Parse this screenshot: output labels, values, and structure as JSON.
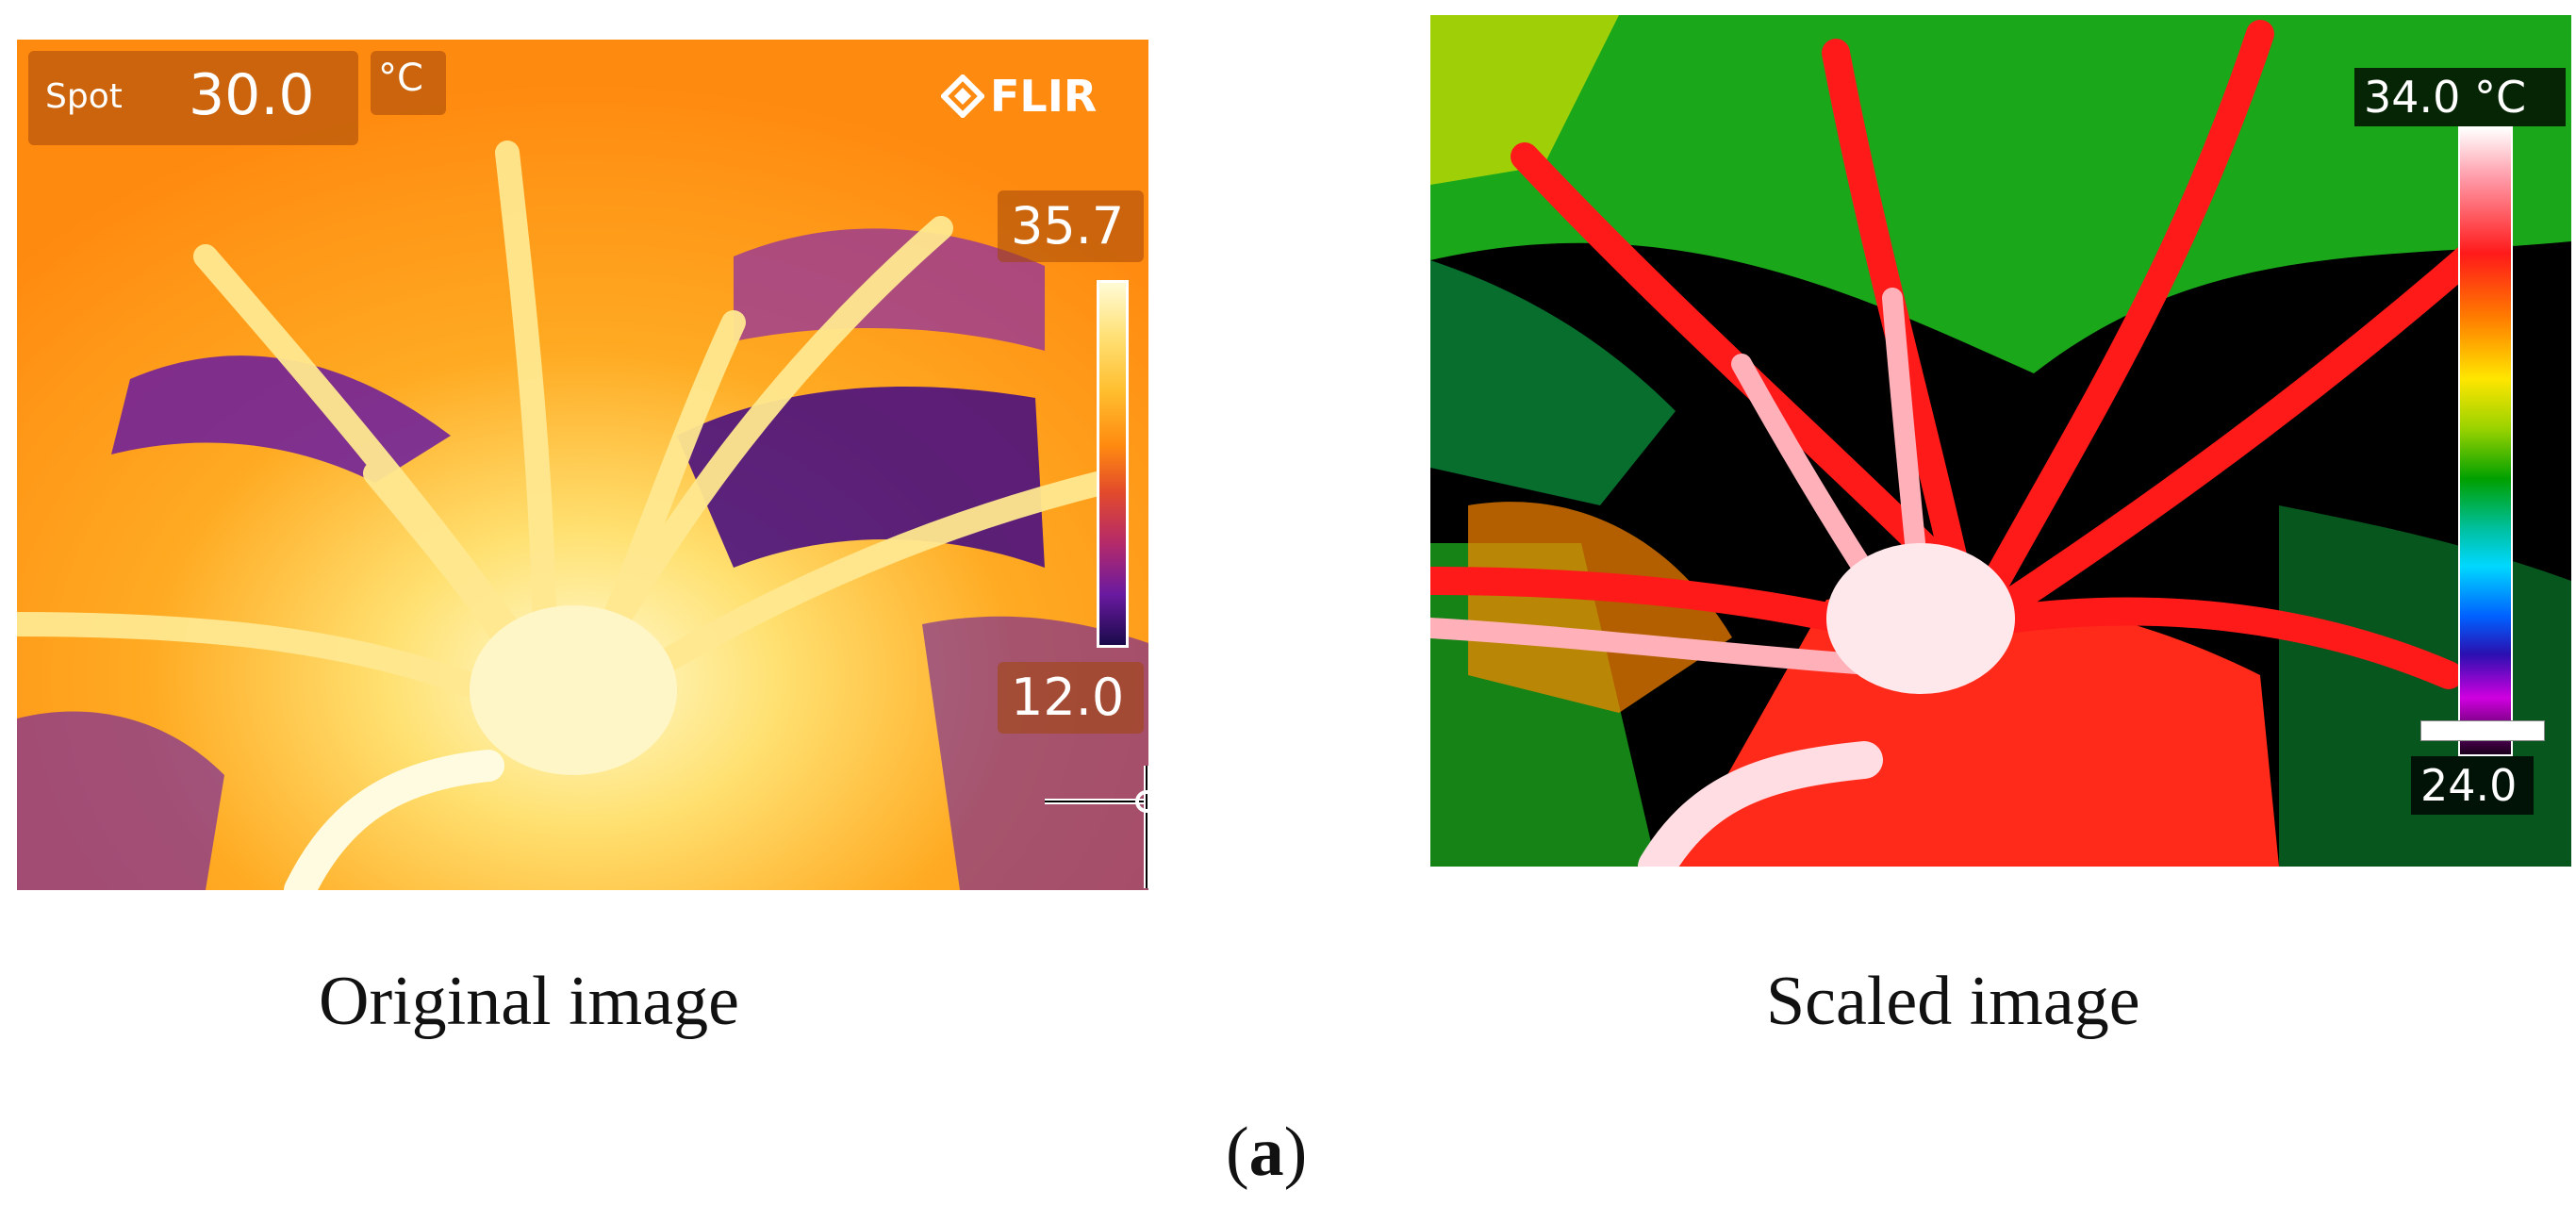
{
  "original": {
    "spot_label": "Spot",
    "spot_value": "30.0",
    "unit": "°C",
    "brand": "FLIR",
    "scale_max": "35.7",
    "scale_min": "12.0",
    "caption": "Original image"
  },
  "scaled": {
    "scale_max": "34.0 °C",
    "scale_min": "24.0",
    "caption": "Scaled image"
  },
  "figure": {
    "label_open": "(",
    "label_letter": "a",
    "label_close": ")"
  },
  "colors": {
    "iron_hot": "#fffbd6",
    "iron_mid": "#ff8a10",
    "iron_cold": "#6a1aa0",
    "rainbow_hot": "#ffffff",
    "rainbow_mid": "#00a000",
    "rainbow_cold": "#1a001a"
  },
  "icons": [
    "flir-logo-icon",
    "crosshair-icon"
  ]
}
